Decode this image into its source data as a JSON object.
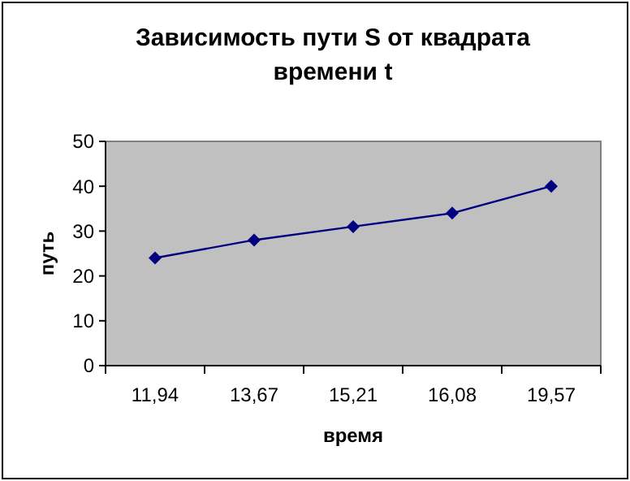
{
  "chart_data": {
    "type": "line",
    "title": "Зависимость пути S от квадрата времени t",
    "xlabel": "время",
    "ylabel": "путь",
    "categories": [
      "11,94",
      "13,67",
      "15,21",
      "16,08",
      "19,57"
    ],
    "series": [
      {
        "color": "#000080",
        "values": [
          24,
          28,
          31,
          34,
          40
        ]
      }
    ],
    "ylim": [
      0,
      50
    ],
    "yticks": [
      0,
      10,
      20,
      30,
      40,
      50
    ],
    "grid": false,
    "marker": "diamond",
    "line_style": "solid"
  }
}
